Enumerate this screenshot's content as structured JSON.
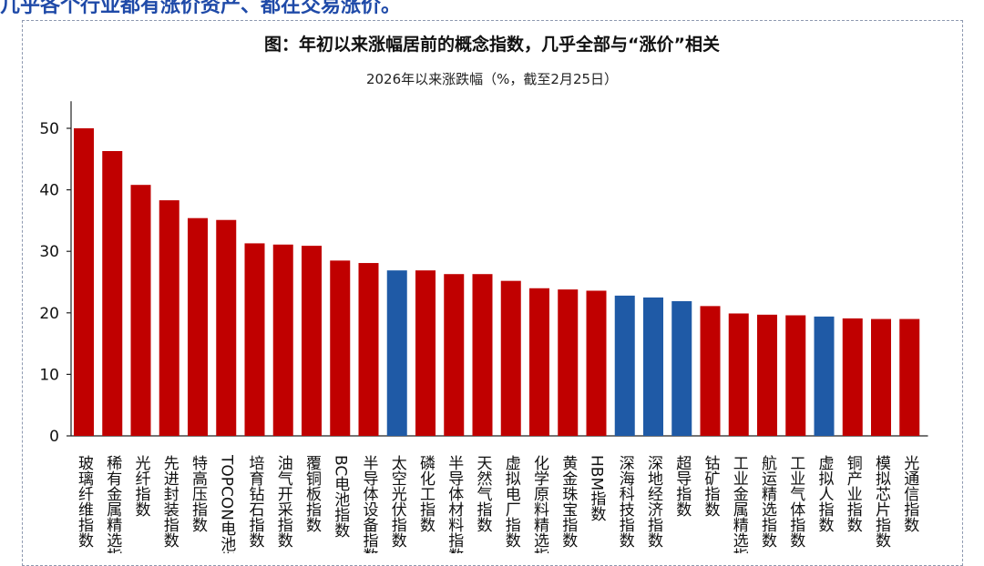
{
  "header": {
    "banner": "几乎各个行业都有涨价资产、都在交易涨价。"
  },
  "chart_data": {
    "type": "bar",
    "title": "图：年初以来涨幅居前的概念指数，几乎全部与“涨价”相关",
    "subtitle": "2026年以来涨跌幅（%，截至2月25日）",
    "xlabel": "",
    "ylabel": "",
    "ylim": [
      0,
      55
    ],
    "yticks": [
      0,
      10,
      20,
      30,
      40,
      50
    ],
    "grid": false,
    "colors": {
      "red": "#c00000",
      "blue": "#1f5aa6"
    },
    "categories": [
      "玻璃纤维指数",
      "稀有金属精选指数",
      "光纤指数",
      "先进封装指数",
      "特高压指数",
      "TOPCON电池指数",
      "培育钻石指数",
      "油气开采指数",
      "覆铜板指数",
      "BC电池指数",
      "半导体设备指数",
      "太空光伏指数",
      "磷化工指数",
      "半导体材料指数",
      "天然气指数",
      "虚拟电厂指数",
      "化学原料精选指数",
      "黄金珠宝指数",
      "HBM指数",
      "深海科技指数",
      "深地经济指数",
      "超导指数",
      "钴矿指数",
      "工业金属精选指数",
      "航运精选指数",
      "工业气体指数",
      "虚拟人指数",
      "铜产业指数",
      "模拟芯片指数",
      "光通信指数"
    ],
    "values": [
      50.0,
      46.3,
      40.8,
      38.3,
      35.4,
      35.1,
      31.3,
      31.1,
      30.9,
      28.5,
      28.1,
      26.9,
      26.9,
      26.3,
      26.3,
      25.2,
      24.0,
      23.8,
      23.6,
      22.8,
      22.5,
      21.9,
      21.1,
      19.9,
      19.7,
      19.6,
      19.4,
      19.1,
      19.0,
      19.0
    ],
    "bar_colors": [
      "red",
      "red",
      "red",
      "red",
      "red",
      "red",
      "red",
      "red",
      "red",
      "red",
      "red",
      "blue",
      "red",
      "red",
      "red",
      "red",
      "red",
      "red",
      "red",
      "blue",
      "blue",
      "blue",
      "red",
      "red",
      "red",
      "red",
      "blue",
      "red",
      "red",
      "red"
    ]
  }
}
